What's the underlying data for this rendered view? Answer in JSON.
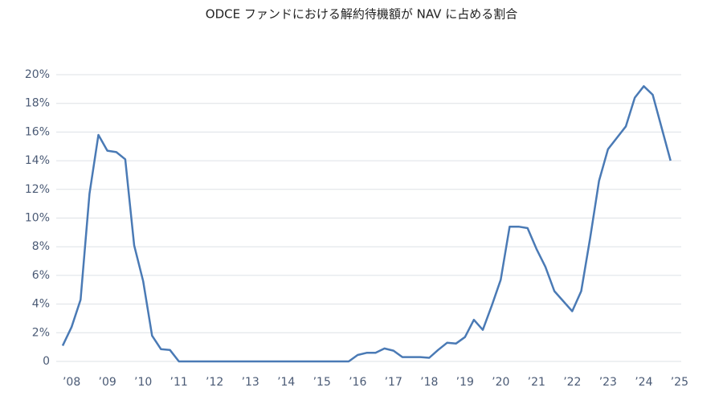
{
  "chart_data": {
    "type": "line",
    "title": "ODCE ファンドにおける解約待機額が NAV に占める割合",
    "x": [
      2007.75,
      2008,
      2008.25,
      2008.5,
      2008.75,
      2009,
      2009.25,
      2009.5,
      2009.75,
      2010,
      2010.25,
      2010.5,
      2010.75,
      2011,
      2011.25,
      2011.5,
      2011.75,
      2012,
      2012.25,
      2012.5,
      2012.75,
      2013,
      2013.25,
      2013.5,
      2013.75,
      2014,
      2014.25,
      2014.5,
      2014.75,
      2015,
      2015.25,
      2015.5,
      2015.75,
      2016,
      2016.25,
      2016.5,
      2016.75,
      2017,
      2017.25,
      2017.5,
      2017.75,
      2018,
      2018.25,
      2018.5,
      2018.75,
      2019,
      2019.25,
      2019.5,
      2019.75,
      2020,
      2020.25,
      2020.5,
      2020.75,
      2021,
      2021.25,
      2021.5,
      2021.75,
      2022,
      2022.25,
      2022.5,
      2022.75,
      2023,
      2023.25,
      2023.5,
      2023.75,
      2024,
      2024.25,
      2024.5,
      2024.75
    ],
    "series": [
      {
        "color": "#4a7ab5",
        "values": [
          1.1,
          2.4,
          4.3,
          11.7,
          15.8,
          14.7,
          14.6,
          14.1,
          8.1,
          5.6,
          1.8,
          0.85,
          0.8,
          0,
          0,
          0,
          0,
          0,
          0,
          0,
          0,
          0,
          0,
          0,
          0,
          0,
          0,
          0,
          0,
          0,
          0,
          0,
          0,
          0.45,
          0.6,
          0.6,
          0.9,
          0.75,
          0.3,
          0.3,
          0.3,
          0.25,
          0.8,
          1.3,
          1.25,
          1.7,
          2.9,
          2.2,
          3.9,
          5.7,
          9.4,
          9.4,
          9.3,
          7.85,
          6.6,
          4.9,
          4.2,
          3.5,
          4.9,
          8.6,
          12.6,
          14.8,
          15.6,
          16.4,
          18.4,
          19.2,
          18.6,
          16.3,
          14.0
        ]
      }
    ],
    "xlim": [
      2007.75,
      2025.25
    ],
    "xticks": [
      {
        "value": 2008,
        "label": "’08"
      },
      {
        "value": 2009,
        "label": "’09"
      },
      {
        "value": 2010,
        "label": "’10"
      },
      {
        "value": 2011,
        "label": "’11"
      },
      {
        "value": 2012,
        "label": "’12"
      },
      {
        "value": 2013,
        "label": "’13"
      },
      {
        "value": 2014,
        "label": "’14"
      },
      {
        "value": 2015,
        "label": "’15"
      },
      {
        "value": 2016,
        "label": "’16"
      },
      {
        "value": 2017,
        "label": "’17"
      },
      {
        "value": 2018,
        "label": "’18"
      },
      {
        "value": 2019,
        "label": "’19"
      },
      {
        "value": 2020,
        "label": "’20"
      },
      {
        "value": 2021,
        "label": "’21"
      },
      {
        "value": 2022,
        "label": "’22"
      },
      {
        "value": 2023,
        "label": "’23"
      },
      {
        "value": 2024,
        "label": "’24"
      },
      {
        "value": 2025,
        "label": "’25"
      }
    ],
    "ylim": [
      0,
      20
    ],
    "yticks": [
      0,
      {
        "value": 2,
        "label": "2%"
      },
      {
        "value": 4,
        "label": "4%"
      },
      {
        "value": 6,
        "label": "6%"
      },
      {
        "value": 8,
        "label": "8%"
      },
      {
        "value": 10,
        "label": "10%"
      },
      {
        "value": 12,
        "label": "12%"
      },
      {
        "value": 14,
        "label": "14%"
      },
      {
        "value": 16,
        "label": "16%"
      },
      {
        "value": 18,
        "label": "18%"
      },
      {
        "value": 20,
        "label": "20%"
      }
    ],
    "grid": true
  }
}
